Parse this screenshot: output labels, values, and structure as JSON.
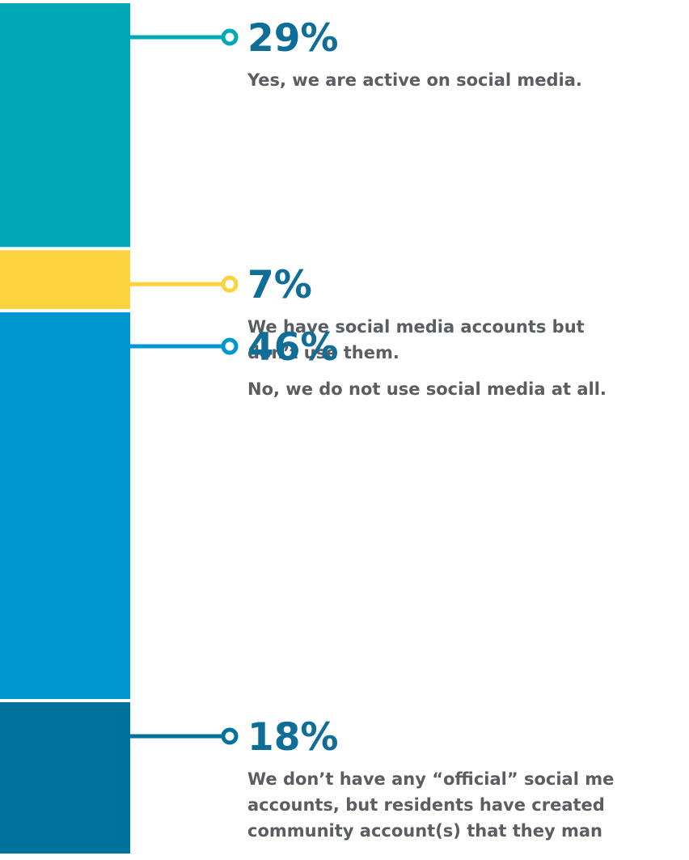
{
  "chart_data": {
    "type": "bar",
    "orientation": "stacked-vertical",
    "unit": "%",
    "segments": [
      {
        "value": 29,
        "label": "29%",
        "description": [
          "Yes, we are active on social media."
        ],
        "color": "#00a8b5"
      },
      {
        "value": 7,
        "label": "7%",
        "description": [
          "We have social media accounts but",
          "don’t use them."
        ],
        "color": "#fcd23f"
      },
      {
        "value": 46,
        "label": "46%",
        "description": [
          "No, we do not use social media at all."
        ],
        "color": "#0096d1"
      },
      {
        "value": 18,
        "label": "18%",
        "description": [
          "We don’t have any “official” social me",
          "accounts, but residents have created",
          "community account(s) that they man"
        ],
        "color": "#00739c"
      }
    ]
  }
}
